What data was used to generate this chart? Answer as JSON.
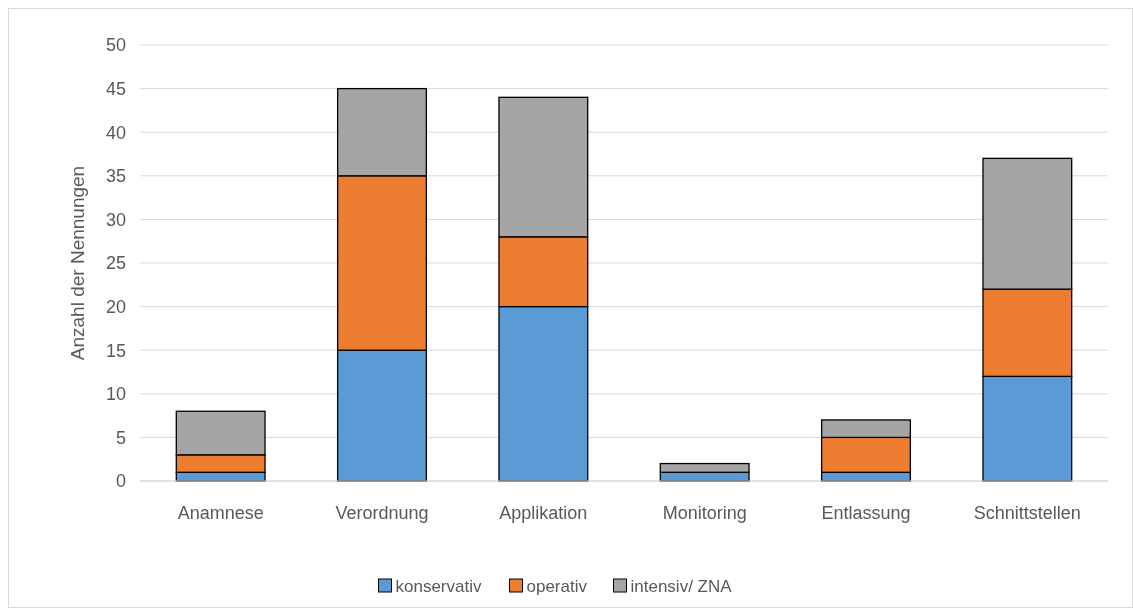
{
  "chart_data": {
    "type": "bar",
    "stacked": true,
    "ylabel": "Anzahl der Nennungen",
    "categories": [
      "Anamnese",
      "Verordnung",
      "Applikation",
      "Monitoring",
      "Entlassung",
      "Schnittstellen"
    ],
    "series": [
      {
        "name": "konservativ",
        "color": "#5b9bd5",
        "values": [
          1,
          15,
          20,
          1,
          1,
          12
        ]
      },
      {
        "name": "operativ",
        "color": "#ed7d31",
        "values": [
          2,
          20,
          8,
          0,
          4,
          10
        ]
      },
      {
        "name": "intensiv/ ZNA",
        "color": "#a5a5a5",
        "values": [
          5,
          10,
          16,
          1,
          2,
          15
        ]
      }
    ],
    "ylim": [
      0,
      50
    ],
    "yticks": [
      0,
      5,
      10,
      15,
      20,
      25,
      30,
      35,
      40,
      45,
      50
    ],
    "grid": "y",
    "legend": "bottom"
  }
}
